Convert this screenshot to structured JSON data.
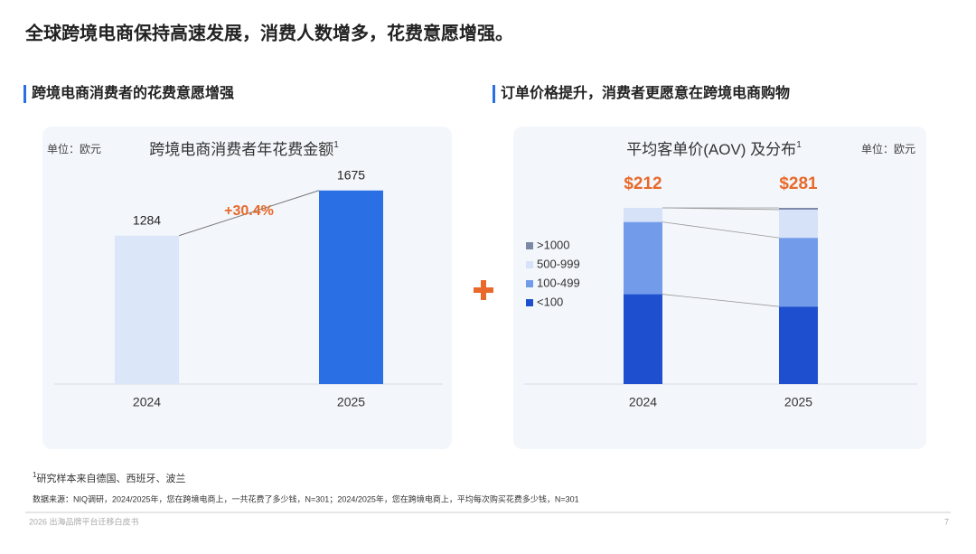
{
  "title": "全球跨境电商保持高速发展，消费人数增多，花费意愿增强。",
  "chart_data": [
    {
      "type": "bar",
      "heading": "跨境电商消费者的花费意愿增强",
      "title": "跨境电商消费者年花费金额",
      "title_note": "1",
      "unit": "单位：欧元",
      "categories": [
        "2024",
        "2025"
      ],
      "values": [
        1284,
        1675
      ],
      "colors": [
        "#dbe6f8",
        "#2a6fe3"
      ],
      "annotation": "+30.4%",
      "ylim": [
        0,
        1900
      ]
    },
    {
      "type": "stacked-bar",
      "heading": "订单价格提升，消费者更愿意在跨境电商购物",
      "title": "平均客单价(AOV) 及分布",
      "title_note": "1",
      "unit": "单位：欧元",
      "categories": [
        "2024",
        "2025"
      ],
      "ylim": [
        0,
        100
      ],
      "series": [
        {
          "name": "<100",
          "color": "#1d4fcf",
          "values": [
            51,
            44
          ]
        },
        {
          "name": "100-499",
          "color": "#729ce9",
          "values": [
            41,
            39
          ]
        },
        {
          "name": "500-999",
          "color": "#d5e2f7",
          "values": [
            8,
            16
          ]
        },
        {
          "name": ">1000",
          "color": "#7b88a6",
          "values": [
            0,
            1
          ]
        }
      ],
      "aov": {
        "values": [
          212,
          281
        ],
        "value_labels": [
          "$212",
          "$281"
        ],
        "color": "#e8692a"
      }
    }
  ],
  "footnote": {
    "mark": "1",
    "text": "研究样本来自德国、西班牙、波兰"
  },
  "source": "数据来源：NIQ调研，2024/2025年，您在跨境电商上，一共花费了多少钱，N=301；2024/2025年，您在跨境电商上，平均每次购买花费多少钱，N=301",
  "footer": {
    "text": "2026 出海品牌平台迁移白皮书",
    "page": "7"
  }
}
